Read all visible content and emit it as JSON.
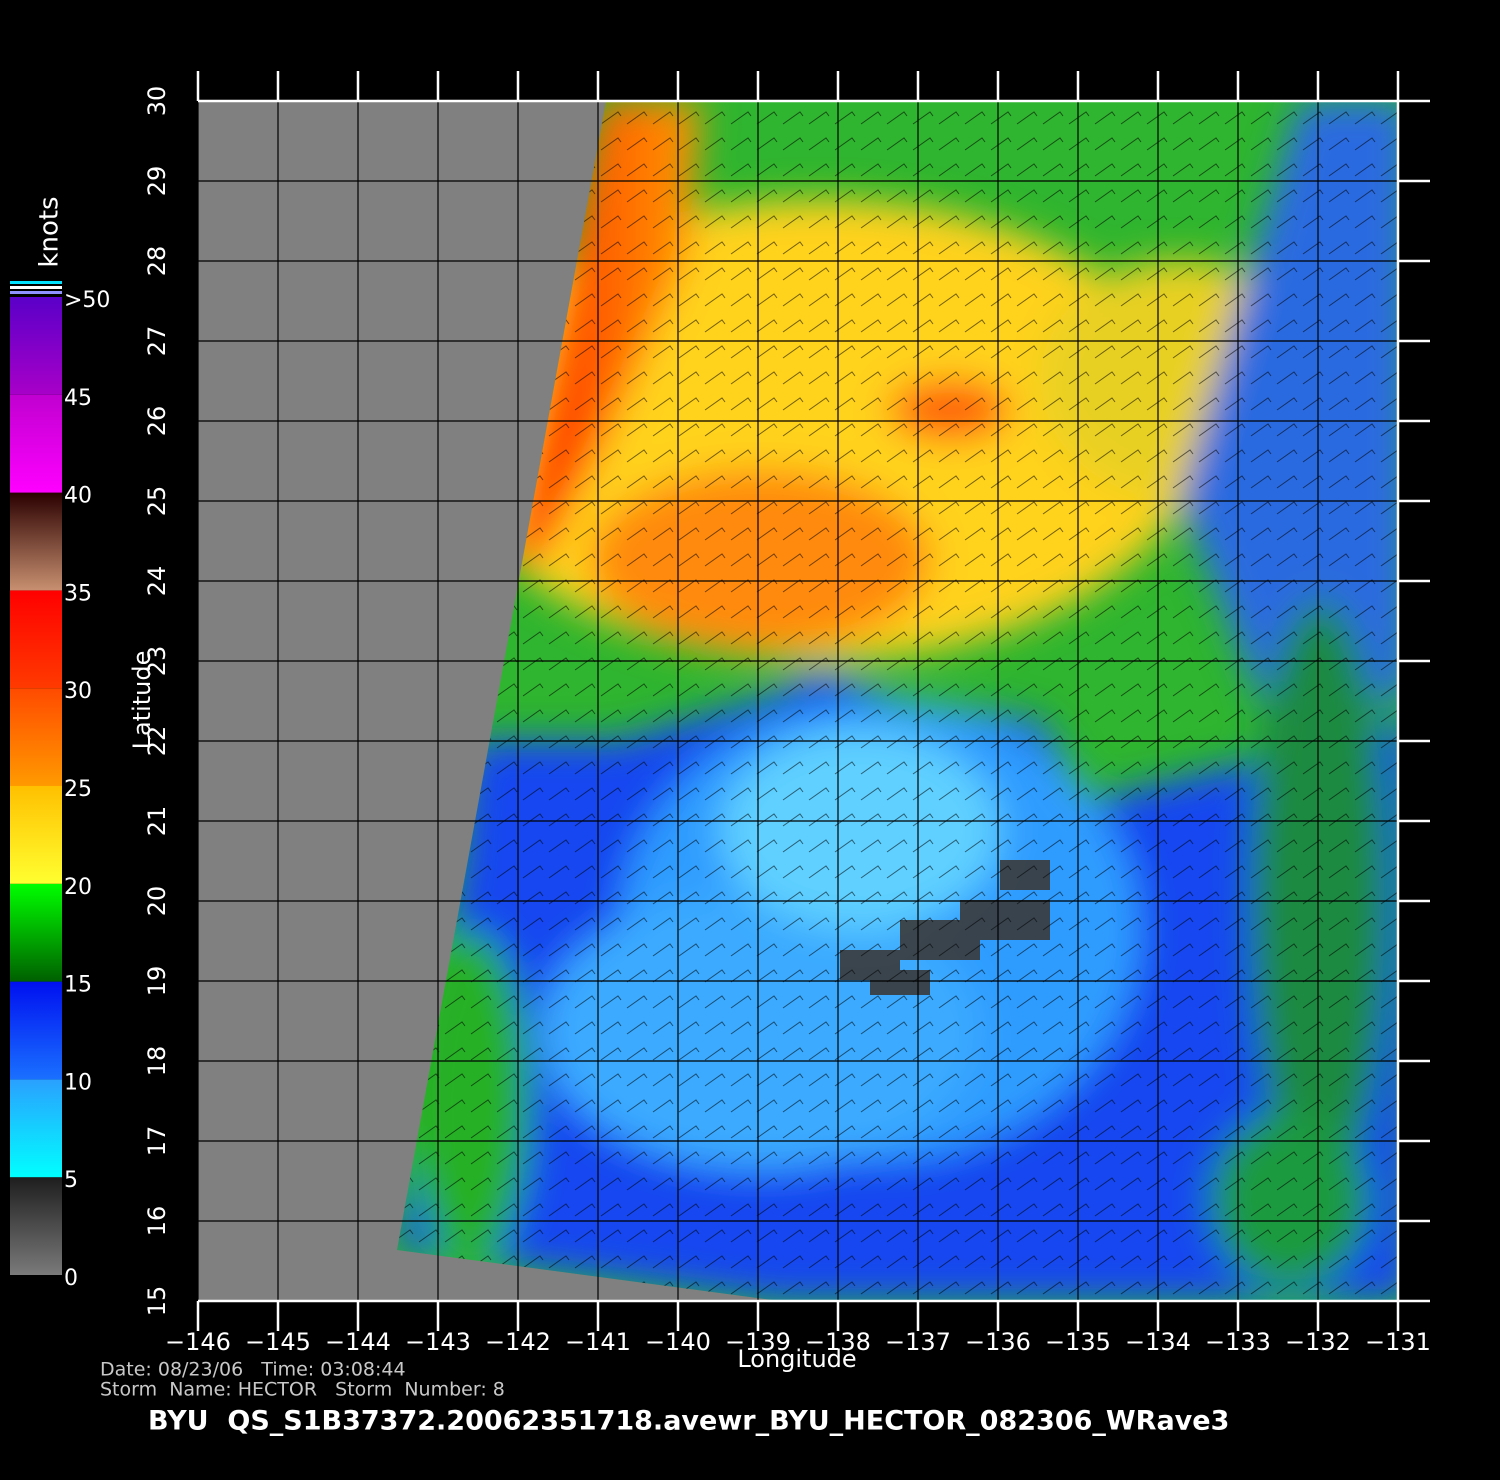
{
  "map": {
    "title": "BYU  QS_S1B37372.20062351718.avewr_BYU_HECTOR_082306_WRave3",
    "x_label": "Longitude",
    "y_label": "Latitude",
    "info": [
      "Date: 08/23/06   Time: 03:08:44",
      "Storm  Name: HECTOR   Storm  Number: 8"
    ],
    "xlim": [
      -146,
      -131
    ],
    "ylim": [
      15,
      30
    ],
    "xticks": [
      {
        "value": -146,
        "label": "−146"
      },
      {
        "value": -145,
        "label": "−145"
      },
      {
        "value": -144,
        "label": "−144"
      },
      {
        "value": -143,
        "label": "−143"
      },
      {
        "value": -142,
        "label": "−142"
      },
      {
        "value": -141,
        "label": "−141"
      },
      {
        "value": -140,
        "label": "−140"
      },
      {
        "value": -139,
        "label": "−139"
      },
      {
        "value": -138,
        "label": "−138"
      },
      {
        "value": -137,
        "label": "−137"
      },
      {
        "value": -136,
        "label": "−136"
      },
      {
        "value": -135,
        "label": "−135"
      },
      {
        "value": -134,
        "label": "−134"
      },
      {
        "value": -133,
        "label": "−133"
      },
      {
        "value": -132,
        "label": "−132"
      },
      {
        "value": -131,
        "label": "−131"
      }
    ],
    "yticks": [
      15,
      16,
      17,
      18,
      19,
      20,
      21,
      22,
      23,
      24,
      25,
      26,
      27,
      28,
      29,
      30
    ],
    "grid": true
  },
  "colorbar": {
    "title": "knots",
    "lim": [
      0,
      50
    ],
    "ticks": [
      0,
      5,
      10,
      15,
      20,
      25,
      30,
      35,
      40,
      45,
      {
        "value": 50,
        "label": ">50"
      }
    ],
    "colors": [
      [
        "#7a7a7a",
        "#1e1e1e"
      ],
      [
        "#00ffff",
        "#2aa0ff"
      ],
      [
        "#1a70ff",
        "#0010f0"
      ],
      [
        "#006000",
        "#00ff00"
      ],
      [
        "#ffff30",
        "#ffc000"
      ],
      [
        "#ff9a00",
        "#ff4a00"
      ],
      [
        "#ff3a00",
        "#ff0000"
      ],
      [
        "#c89070",
        "#2a0000"
      ],
      [
        "#ff00ff",
        "#c000d0"
      ],
      [
        "#a800c8",
        "#5a00c8"
      ]
    ]
  }
}
